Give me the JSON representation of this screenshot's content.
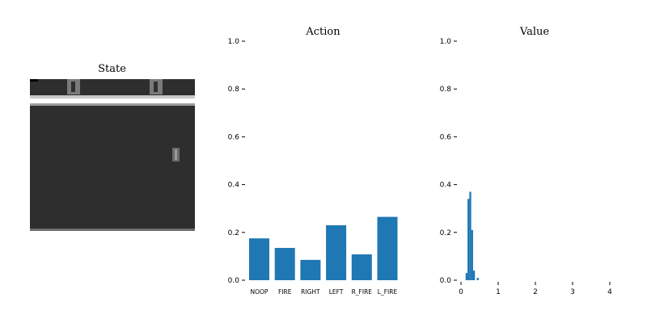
{
  "chart_data": [
    {
      "type": "image",
      "title": "State"
    },
    {
      "type": "bar",
      "title": "Action",
      "categories": [
        "NOOP",
        "FIRE",
        "RIGHT",
        "LEFT",
        "R_FIRE",
        "L_FIRE"
      ],
      "values": [
        0.175,
        0.135,
        0.085,
        0.23,
        0.108,
        0.265
      ],
      "ylim": [
        0,
        1
      ],
      "yticks": [
        "0.0",
        "0.2",
        "0.4",
        "0.6",
        "0.8",
        "1.0"
      ],
      "color": "#1f77b4"
    },
    {
      "type": "bar",
      "title": "Value",
      "x": [
        0.15,
        0.2,
        0.25,
        0.3,
        0.35,
        0.4,
        0.45,
        0.5,
        0.55
      ],
      "values": [
        0.03,
        0.34,
        0.37,
        0.21,
        0.04,
        0.0,
        0.01,
        0.0,
        0.0
      ],
      "bin_width": 0.05,
      "xlim": [
        -0.05,
        4.2
      ],
      "ylim": [
        0,
        1
      ],
      "xticks": [
        "0",
        "1",
        "2",
        "3",
        "4"
      ],
      "yticks": [
        "0.0",
        "0.2",
        "0.4",
        "0.6",
        "0.8",
        "1.0"
      ],
      "color": "#1f77b4"
    }
  ]
}
